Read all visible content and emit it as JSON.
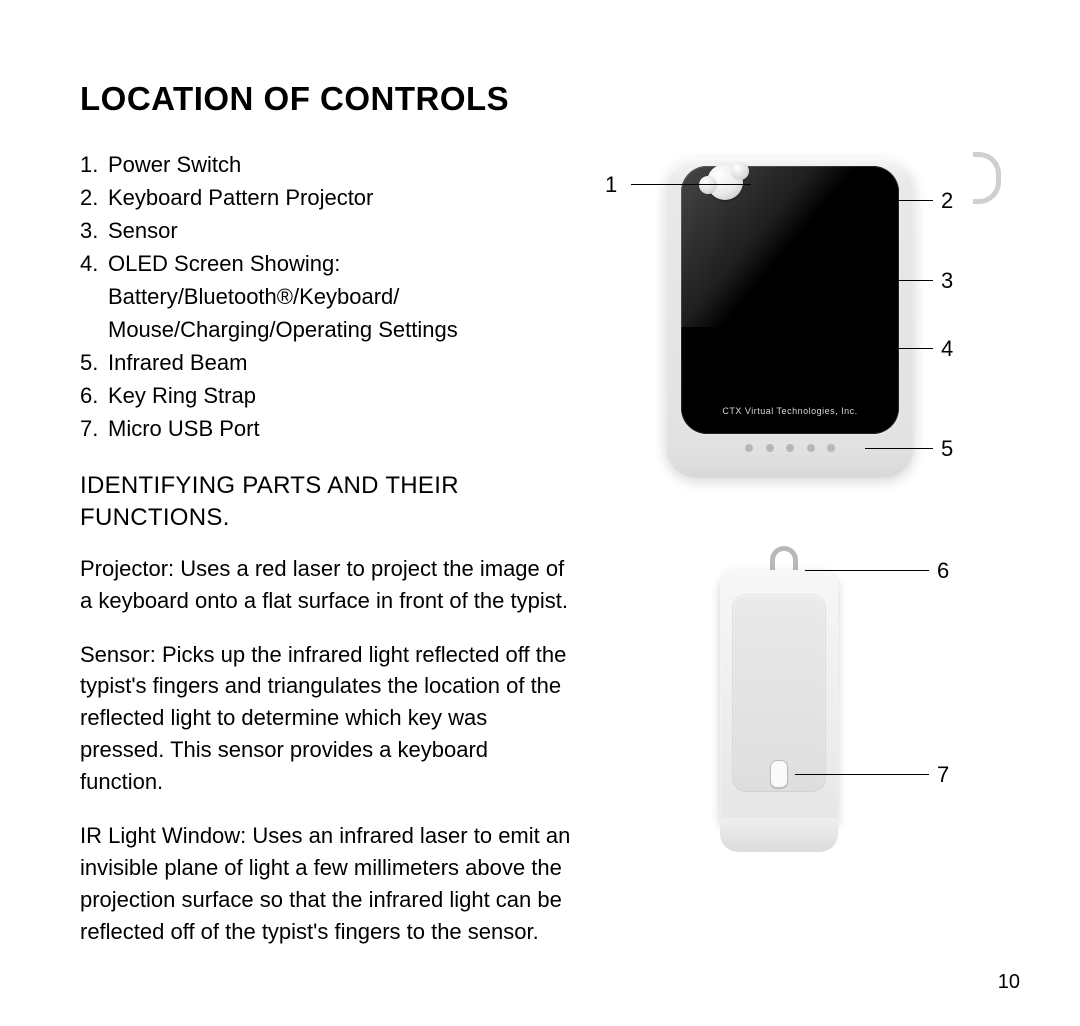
{
  "title": "LOCATION OF CONTROLS",
  "controls": [
    "Power Switch",
    "Keyboard Pattern Projector",
    "Sensor",
    "OLED Screen Showing: Battery/Bluetooth®/Keyboard/ Mouse/Charging/Operating Settings",
    "Infrared Beam",
    "Key Ring Strap",
    "Micro USB Port"
  ],
  "subhead": "IDENTIFYING PARTS AND THEIR FUNCTIONS.",
  "functions": [
    {
      "lead": "Projector:",
      "body": " Uses a red laser to project the image of a keyboard onto a flat surface in front of the typist."
    },
    {
      "lead": "Sensor:",
      "body": " Picks up the infrared light reflected off the typist's fingers and triangulates the location of the reflected light to determine which key was pressed. This sensor provides a keyboard function."
    },
    {
      "lead": "IR Light Window:",
      "body": " Uses an infrared laser to emit an invisible plane of light a few millimeters above the projection surface so that the infrared light can be reflected off of the typist's fingers to the sensor."
    }
  ],
  "diagram1": {
    "callouts": [
      "1",
      "2",
      "3",
      "4",
      "5"
    ],
    "brand": "CTX Virtual Technologies, Inc."
  },
  "diagram2": {
    "callouts": [
      "6",
      "7"
    ]
  },
  "page_number": "10",
  "colors": {
    "text": "#000000",
    "background": "#ffffff",
    "device_body": "#e6e6e6",
    "device_screen": "#000000",
    "callout_line": "#000000"
  }
}
